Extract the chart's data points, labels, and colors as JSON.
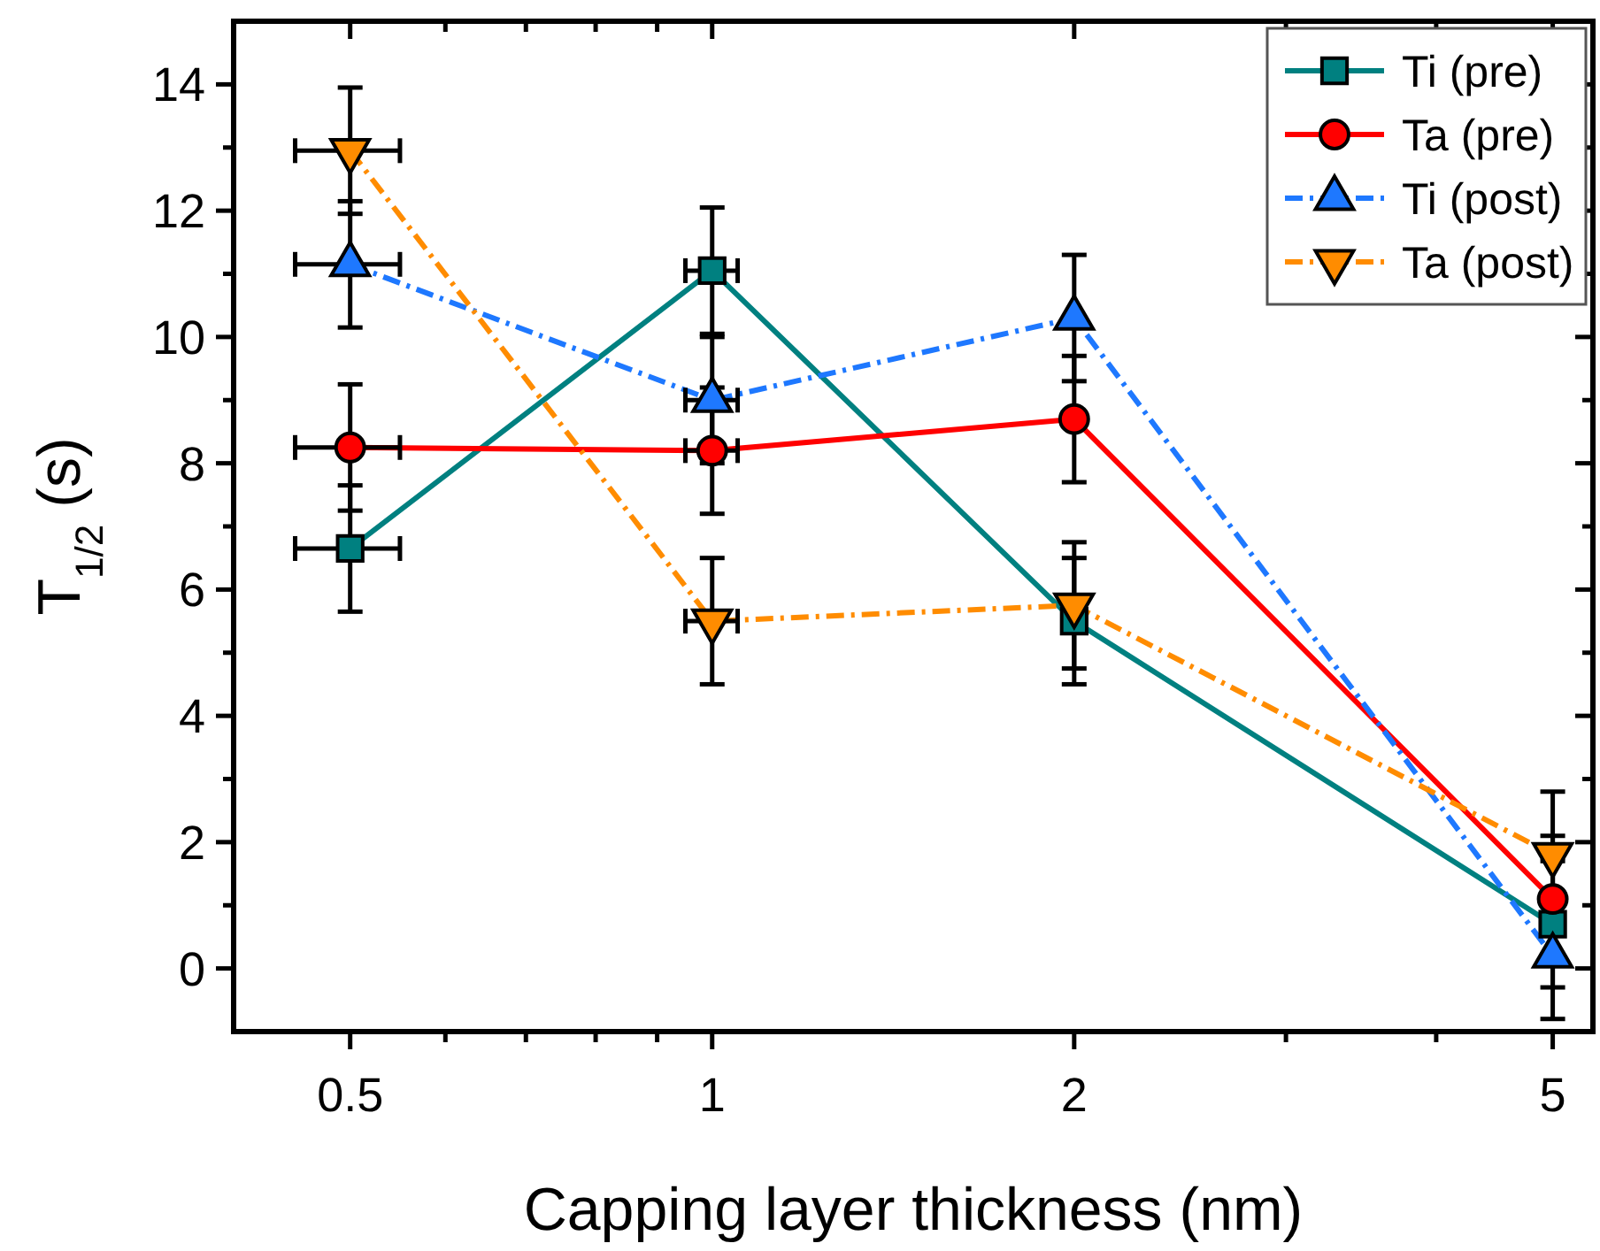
{
  "chart_data": {
    "type": "line",
    "xlabel": "Capping layer thickness (nm)",
    "ylabel": "T$_{1/2}$ (s)",
    "log": "x",
    "x": [
      0.5,
      1,
      2,
      5
    ],
    "xlim": [
      0.4,
      5.4
    ],
    "xticks": [
      0.5,
      {
        "value": 0.6,
        "label": null
      },
      {
        "value": 0.7,
        "label": null
      },
      {
        "value": 0.8,
        "label": null
      },
      {
        "value": 0.9,
        "label": null
      },
      1,
      2,
      {
        "value": 3,
        "label": null
      },
      {
        "value": 4,
        "label": null
      },
      5
    ],
    "ylim": [
      -1,
      15
    ],
    "yticks": [
      0,
      {
        "value": 1,
        "label": null
      },
      2,
      {
        "value": 3,
        "label": null
      },
      4,
      {
        "value": 5,
        "label": null
      },
      6,
      {
        "value": 7,
        "label": null
      },
      8,
      {
        "value": 9,
        "label": null
      },
      10,
      {
        "value": 11,
        "label": null
      },
      12,
      {
        "value": 13,
        "label": null
      },
      14
    ],
    "legend": "top right",
    "grid": false,
    "series": [
      {
        "name": "Ti (pre)",
        "color": "#008080",
        "marker": "square",
        "line_style": "solid",
        "values": [
          6.65,
          11.05,
          5.5,
          0.7
        ],
        "errors": [
          1,
          1,
          1,
          1
        ],
        "xerrors": [
          0.05,
          0.05,
          null,
          null
        ]
      },
      {
        "name": "Ta (pre)",
        "color": "#ff0000",
        "marker": "circle",
        "line_style": "solid",
        "values": [
          8.25,
          8.2,
          8.7,
          1.1
        ],
        "errors": [
          1,
          1,
          1,
          1
        ],
        "xerrors": [
          0.05,
          0.05,
          null,
          null
        ]
      },
      {
        "name": "Ti (post)",
        "color": "#1e78ff",
        "marker": "triangle",
        "line_style": "dashdot",
        "values": [
          11.15,
          9.0,
          10.3,
          0.2
        ],
        "errors": [
          1,
          1,
          1,
          1
        ],
        "xerrors": [
          0.05,
          0.05,
          null,
          null
        ]
      },
      {
        "name": "Ta (post)",
        "color": "#ff8c00",
        "marker": "triangle-down",
        "line_style": "dashdot",
        "values": [
          12.95,
          5.5,
          5.75,
          1.8
        ],
        "errors": [
          1,
          1,
          1,
          1
        ],
        "xerrors": [
          0.05,
          0.05,
          null,
          null
        ]
      }
    ]
  }
}
